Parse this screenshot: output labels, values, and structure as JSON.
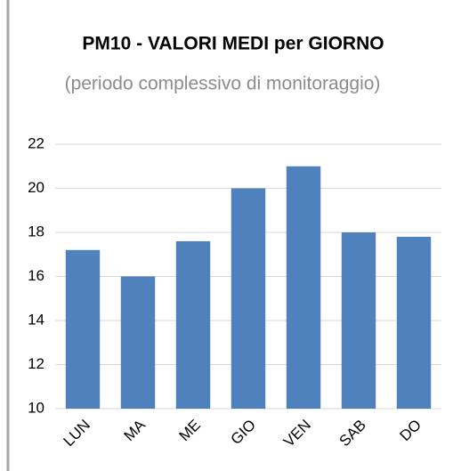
{
  "chart_data": {
    "type": "bar",
    "title": "PM10 - VALORI MEDI per GIORNO",
    "subtitle": "(periodo complessivo di monitoraggio)",
    "categories": [
      "LUN",
      "MA",
      "ME",
      "GIO",
      "VEN",
      "SAB",
      "DO"
    ],
    "values": [
      17.2,
      16.0,
      17.6,
      20.0,
      21.0,
      18.0,
      17.8
    ],
    "color": "#4f81bd",
    "ylim": [
      10,
      22
    ],
    "yticks": [
      10,
      12,
      14,
      16,
      18,
      20,
      22
    ],
    "grid": true
  }
}
